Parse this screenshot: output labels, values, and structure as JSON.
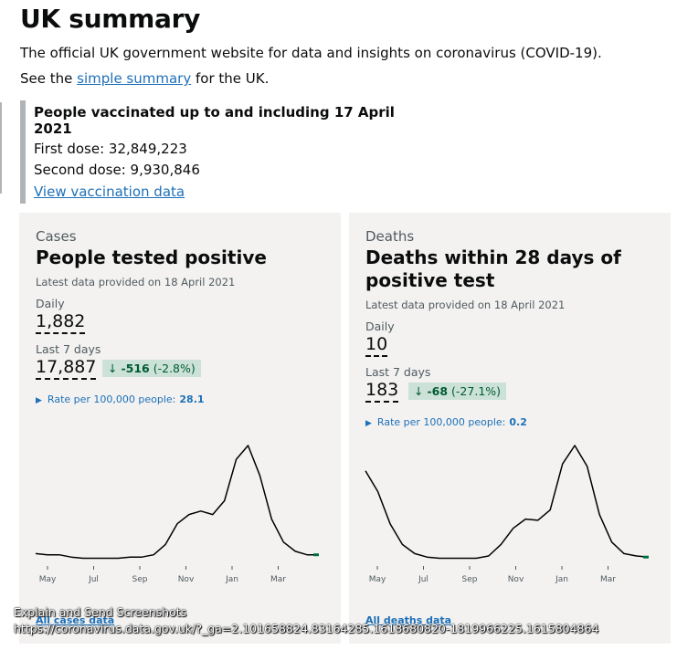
{
  "page": {
    "title": "UK summary",
    "lede": "The official UK government website for data and insights on coronavirus (COVID-19).",
    "see_prefix": "See the",
    "see_link": "simple summary",
    "see_suffix": "for the UK."
  },
  "vaccination": {
    "title": "People vaccinated up to and including 17 April 2021",
    "first_dose": "First dose: 32,849,223",
    "second_dose": "Second dose: 9,930,846",
    "link": "View vaccination data"
  },
  "cases": {
    "category": "Cases",
    "title": "People tested positive",
    "latest": "Latest data provided on 18 April 2021",
    "daily_label": "Daily",
    "daily_value": "1,882",
    "week_label": "Last 7 days",
    "week_value": "17,887",
    "change_value": "-516",
    "change_pct": "(-2.8%)",
    "rate_label": "Rate per 100,000 people:",
    "rate_value": "28.1",
    "all_link": "All cases data"
  },
  "deaths": {
    "category": "Deaths",
    "title": "Deaths within 28 days of positive test",
    "latest": "Latest data provided on 18 April 2021",
    "daily_label": "Daily",
    "daily_value": "10",
    "week_label": "Last 7 days",
    "week_value": "183",
    "change_value": "-68",
    "change_pct": "(-27.1%)",
    "rate_label": "Rate per 100,000 people:",
    "rate_value": "0.2",
    "all_link": "All deaths data"
  },
  "chart_data": [
    {
      "type": "line",
      "name_key": "cases",
      "x_ticks": [
        "May",
        "Jul",
        "Sep",
        "Nov",
        "Jan",
        "Mar"
      ],
      "values": [
        6,
        5,
        5,
        3,
        2,
        2,
        2,
        2,
        3,
        3,
        5,
        14,
        32,
        40,
        43,
        40,
        52,
        88,
        100,
        74,
        36,
        16,
        8,
        5,
        5
      ],
      "ylim": [
        0,
        100
      ],
      "line_color": "#000000",
      "end_color": "#00703c"
    },
    {
      "type": "line",
      "name_key": "deaths",
      "x_ticks": [
        "May",
        "Jul",
        "Sep",
        "Nov",
        "Jan",
        "Mar"
      ],
      "values": [
        78,
        60,
        32,
        14,
        6,
        3,
        2,
        2,
        2,
        2,
        4,
        14,
        28,
        36,
        35,
        44,
        84,
        100,
        82,
        40,
        16,
        6,
        4,
        3
      ],
      "ylim": [
        0,
        100
      ],
      "line_color": "#000000",
      "end_color": "#00703c"
    }
  ],
  "overlay": {
    "line1": "Explain and Send Screenshots",
    "line2": "https://coronavirus.data.gov.uk/?_ga=2.101658824.83164285.1618680820-1819966225.1615804864"
  },
  "colors": {
    "link": "#1d70b8",
    "positive_change_bg": "#cce2d8",
    "positive_change_text": "#005a30",
    "card_bg": "#f3f2f1"
  },
  "icons": {
    "change_arrow": "down-arrow-icon",
    "rate_toggle": "triangle-right-icon"
  }
}
